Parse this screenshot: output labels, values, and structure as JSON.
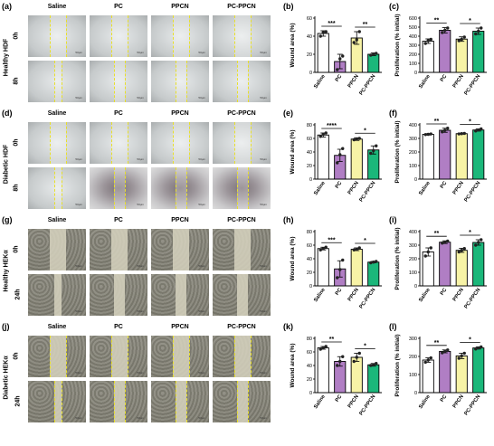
{
  "colors": {
    "saline": "#ffffff",
    "pc": "#b07ec4",
    "ppcn": "#f7f3a6",
    "pcppcn": "#1bb77a",
    "dash": "#e8e02a",
    "fibro_bg": "#cfd3d4",
    "kera_bg": "#b9b8b2"
  },
  "panel_labels": {
    "a": "(a)",
    "b": "(b)",
    "c": "(c)",
    "d": "(d)",
    "e": "(e)",
    "f": "(f)",
    "g": "(g)",
    "h": "(h)",
    "i": "(i)",
    "j": "(j)",
    "k": "(k)",
    "l": "(l)"
  },
  "micrographs": [
    {
      "id": "a",
      "row_name": "Healthy HDF",
      "times": [
        "0h",
        "8h"
      ],
      "columns": [
        "Saline",
        "PC",
        "PPCN",
        "PC-PPCN"
      ],
      "cell_type": "fibroblast",
      "dashed": true,
      "scale_text": "50μm"
    },
    {
      "id": "d",
      "row_name": "Diabetic HDF",
      "times": [
        "0h",
        "8h"
      ],
      "columns": [
        "Saline",
        "PC",
        "PPCN",
        "PC-PPCN"
      ],
      "cell_type": "fibroblast",
      "dashed": true,
      "scale_text": "50μm"
    },
    {
      "id": "g",
      "row_name": "Healthy HEKα",
      "times": [
        "0h",
        "24h"
      ],
      "columns": [
        "Saline",
        "PC",
        "PPCN",
        "PC-PPCN"
      ],
      "cell_type": "keratinocyte",
      "dashed": false,
      "scale_text": "50μm"
    },
    {
      "id": "j",
      "row_name": "Diabetic HEKα",
      "times": [
        "0h",
        "24h"
      ],
      "columns": [
        "Saline",
        "PC",
        "PPCN",
        "PC-PPCN"
      ],
      "cell_type": "keratinocyte",
      "dashed": true,
      "scale_text": "50μm"
    }
  ],
  "chart_data": [
    {
      "id": "b",
      "type": "bar",
      "ylabel": "Wound area (%)",
      "categories": [
        "Saline",
        "PC",
        "PPCN",
        "PC-PPCN"
      ],
      "ylim": [
        0,
        60
      ],
      "yticks": [
        0,
        20,
        40,
        60
      ],
      "values": [
        43,
        12,
        38,
        20
      ],
      "errors": [
        3,
        8,
        7,
        1.5
      ],
      "points": [
        [
          40,
          44,
          45
        ],
        [
          3,
          15,
          18
        ],
        [
          33,
          36,
          45
        ],
        [
          19,
          20,
          21
        ]
      ],
      "significance": [
        {
          "from": 0,
          "to": 1,
          "label": "***"
        },
        {
          "from": 2,
          "to": 3,
          "label": "**"
        }
      ]
    },
    {
      "id": "c",
      "type": "bar",
      "ylabel": "Proliferation (% initial)",
      "categories": [
        "Saline",
        "PC",
        "PPCN",
        "PC-PPCN"
      ],
      "ylim": [
        0,
        600
      ],
      "yticks": [
        0,
        100,
        200,
        300,
        400,
        500,
        600
      ],
      "values": [
        345,
        465,
        368,
        455
      ],
      "errors": [
        25,
        30,
        25,
        35
      ],
      "points": [
        [
          320,
          350,
          365
        ],
        [
          440,
          465,
          490
        ],
        [
          350,
          365,
          390
        ],
        [
          425,
          455,
          490
        ]
      ],
      "significance": [
        {
          "from": 0,
          "to": 1,
          "label": "**"
        },
        {
          "from": 2,
          "to": 3,
          "label": "*"
        }
      ]
    },
    {
      "id": "e",
      "type": "bar",
      "ylabel": "Wound area (%)",
      "categories": [
        "Saline",
        "PC",
        "PPCN",
        "PC-PPCN"
      ],
      "ylim": [
        0,
        80
      ],
      "yticks": [
        0,
        20,
        40,
        60,
        80
      ],
      "values": [
        65,
        35,
        59,
        43
      ],
      "errors": [
        3,
        9,
        2,
        6
      ],
      "points": [
        [
          63,
          66,
          68
        ],
        [
          24,
          36,
          45
        ],
        [
          58,
          59,
          60
        ],
        [
          38,
          42,
          49
        ]
      ],
      "significance": [
        {
          "from": 0,
          "to": 1,
          "label": "****"
        },
        {
          "from": 2,
          "to": 3,
          "label": "*"
        }
      ]
    },
    {
      "id": "f",
      "type": "bar",
      "ylabel": "Proliferation (% initial)",
      "categories": [
        "Saline",
        "PC",
        "PPCN",
        "PC-PPCN"
      ],
      "ylim": [
        0,
        400
      ],
      "yticks": [
        0,
        100,
        200,
        300,
        400
      ],
      "values": [
        330,
        360,
        335,
        362
      ],
      "errors": [
        5,
        15,
        3,
        8
      ],
      "points": [
        [
          328,
          330,
          333
        ],
        [
          348,
          360,
          375
        ],
        [
          333,
          335,
          337
        ],
        [
          355,
          362,
          370
        ]
      ],
      "significance": [
        {
          "from": 0,
          "to": 1,
          "label": "**"
        },
        {
          "from": 2,
          "to": 3,
          "label": "*"
        }
      ]
    },
    {
      "id": "h",
      "type": "bar",
      "ylabel": "Wound area (%)",
      "categories": [
        "Saline",
        "PC",
        "PPCN",
        "PC-PPCN"
      ],
      "ylim": [
        0,
        80
      ],
      "yticks": [
        0,
        20,
        40,
        60,
        80
      ],
      "values": [
        55,
        25,
        54,
        35
      ],
      "errors": [
        2,
        12,
        2,
        1
      ],
      "points": [
        [
          53,
          55,
          57
        ],
        [
          12,
          24,
          38
        ],
        [
          53,
          54,
          56
        ],
        [
          34,
          35,
          36
        ]
      ],
      "significance": [
        {
          "from": 0,
          "to": 1,
          "label": "***"
        },
        {
          "from": 2,
          "to": 3,
          "label": "*"
        }
      ]
    },
    {
      "id": "i",
      "type": "bar",
      "ylabel": "Proliferation (% initial)",
      "categories": [
        "Saline",
        "PC",
        "PPCN",
        "PC-PPCN"
      ],
      "ylim": [
        0,
        400
      ],
      "yticks": [
        0,
        100,
        200,
        300,
        400
      ],
      "values": [
        250,
        322,
        262,
        320
      ],
      "errors": [
        30,
        10,
        15,
        20
      ],
      "points": [
        [
          220,
          250,
          280
        ],
        [
          315,
          322,
          330
        ],
        [
          250,
          262,
          275
        ],
        [
          300,
          320,
          340
        ]
      ],
      "significance": [
        {
          "from": 0,
          "to": 1,
          "label": "**"
        },
        {
          "from": 2,
          "to": 3,
          "label": "*"
        }
      ]
    },
    {
      "id": "k",
      "type": "bar",
      "ylabel": "Wound area (%)",
      "categories": [
        "Saline",
        "PC",
        "PPCN",
        "PC-PPCN"
      ],
      "ylim": [
        0,
        80
      ],
      "yticks": [
        0,
        20,
        40,
        60,
        80
      ],
      "values": [
        66,
        46,
        52,
        41
      ],
      "errors": [
        2,
        7,
        6,
        2
      ],
      "points": [
        [
          64,
          66,
          68
        ],
        [
          40,
          46,
          53
        ],
        [
          46,
          52,
          58
        ],
        [
          40,
          41,
          43
        ]
      ],
      "significance": [
        {
          "from": 0,
          "to": 1,
          "label": "**"
        },
        {
          "from": 2,
          "to": 3,
          "label": "*"
        }
      ]
    },
    {
      "id": "l",
      "type": "bar",
      "ylabel": "Proliferation (% initial)",
      "categories": [
        "Saline",
        "PC",
        "PPCN",
        "PC-PPCN"
      ],
      "ylim": [
        0,
        300
      ],
      "yticks": [
        0,
        100,
        200,
        300
      ],
      "values": [
        180,
        228,
        203,
        247
      ],
      "errors": [
        12,
        8,
        15,
        6
      ],
      "points": [
        [
          168,
          180,
          192
        ],
        [
          220,
          228,
          236
        ],
        [
          190,
          203,
          218
        ],
        [
          241,
          247,
          253
        ]
      ],
      "significance": [
        {
          "from": 0,
          "to": 1,
          "label": "**"
        },
        {
          "from": 2,
          "to": 3,
          "label": "*"
        }
      ]
    }
  ]
}
